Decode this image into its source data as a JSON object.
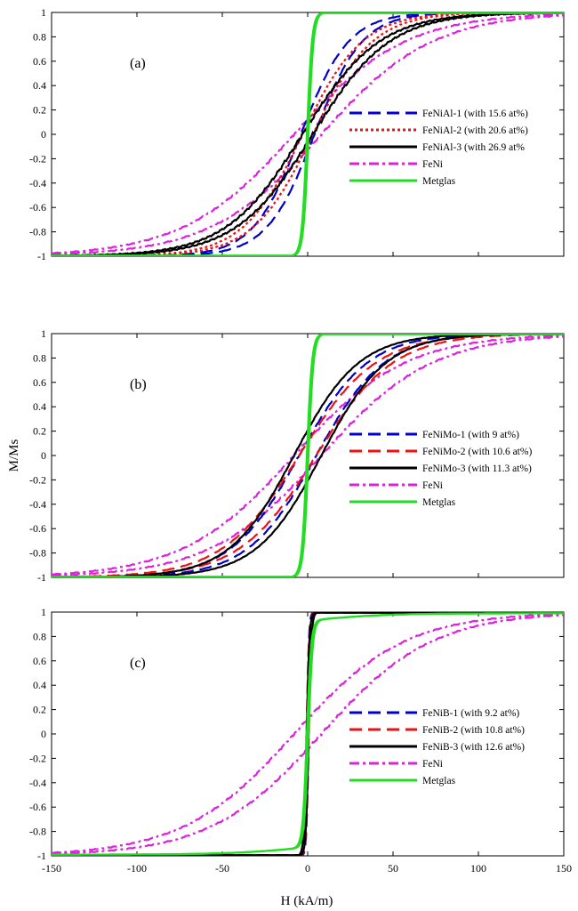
{
  "figure": {
    "xlabel": "H (kA/m)",
    "ylabel": "M/Ms"
  },
  "chart_data": [
    {
      "type": "line",
      "panel_label": "(a)",
      "xlim": [
        -150,
        150
      ],
      "ylim": [
        -1,
        1
      ],
      "xticks": [
        -150,
        -100,
        -50,
        0,
        50,
        100,
        150
      ],
      "yticks": [
        -1,
        -0.8,
        -0.6,
        -0.4,
        -0.2,
        0,
        0.2,
        0.4,
        0.6,
        0.8,
        1
      ],
      "ytick_labels": [
        "-1",
        "-0.8",
        "-0.6",
        "-0.4",
        "-0.2",
        "0",
        "0.2",
        "0.4",
        "0.6",
        "0.8",
        "1"
      ],
      "show_x_tick_labels": false,
      "legend_position": "center-right",
      "series": [
        {
          "name": "FeNiAl-1 (with 15.6 at%)",
          "color": "#0000cc",
          "style": "dash",
          "shape": "tanh",
          "coercivity": 4,
          "scale": 28,
          "noise": 0.004
        },
        {
          "name": "FeNiAl-2 (with 20.6 at%)",
          "color": "#ee1111",
          "style": "dot",
          "shape": "tanh",
          "coercivity": 3,
          "scale": 35,
          "noise": 0.004
        },
        {
          "name": "FeNiAl-3 (with 26.9 at%",
          "color": "#000000",
          "style": "solid",
          "shape": "tanh",
          "coercivity": 3,
          "scale": 45,
          "noise": 0.012
        },
        {
          "name": "FeNi",
          "color": "#dd22dd",
          "style": "dashdot",
          "shape": "tanh",
          "coercivity": 8,
          "scale": 65,
          "noise": 0.008
        },
        {
          "name": "Metglas",
          "color": "#22dd22",
          "style": "solid",
          "shape": "tanh",
          "coercivity": 0.5,
          "scale": 3,
          "noise": 0
        }
      ]
    },
    {
      "type": "line",
      "panel_label": "(b)",
      "xlim": [
        -150,
        150
      ],
      "ylim": [
        -1,
        1
      ],
      "xticks": [
        -150,
        -100,
        -50,
        0,
        50,
        100,
        150
      ],
      "yticks": [
        -1,
        -0.8,
        -0.6,
        -0.4,
        -0.2,
        0,
        0.2,
        0.4,
        0.6,
        0.8,
        1
      ],
      "ytick_labels": [
        "-1",
        "-0.8",
        "-0.6",
        "-0.4",
        "-0.2",
        "0",
        "0.2",
        "0.4",
        "0.6",
        "0.8",
        "1"
      ],
      "show_x_tick_labels": false,
      "legend_position": "center-right",
      "series": [
        {
          "name": "FeNiMo-1 (with 9 at%)",
          "color": "#0000cc",
          "style": "dash",
          "shape": "tanh",
          "coercivity": 5,
          "scale": 40,
          "noise": 0.004
        },
        {
          "name": "FeNiMo-2 (with 10.6 at%)",
          "color": "#ee1111",
          "style": "dash",
          "shape": "tanh",
          "coercivity": 5,
          "scale": 45,
          "noise": 0.004
        },
        {
          "name": "FeNiMo-3 (with 11.3 at%)",
          "color": "#000000",
          "style": "solid",
          "shape": "tanh",
          "coercivity": 8,
          "scale": 38,
          "noise": 0.004
        },
        {
          "name": "FeNi",
          "color": "#dd22dd",
          "style": "dashdot",
          "shape": "tanh",
          "coercivity": 8,
          "scale": 65,
          "noise": 0.008
        },
        {
          "name": "Metglas",
          "color": "#22dd22",
          "style": "solid",
          "shape": "tanh",
          "coercivity": 0.5,
          "scale": 3,
          "noise": 0
        }
      ]
    },
    {
      "type": "line",
      "panel_label": "(c)",
      "xlim": [
        -150,
        150
      ],
      "ylim": [
        -1,
        1
      ],
      "xticks": [
        -150,
        -100,
        -50,
        0,
        50,
        100,
        150
      ],
      "xtick_labels": [
        "-150",
        "-100",
        "-50",
        "0",
        "50",
        "100",
        "150"
      ],
      "yticks": [
        -1,
        -0.8,
        -0.6,
        -0.4,
        -0.2,
        0,
        0.2,
        0.4,
        0.6,
        0.8,
        1
      ],
      "ytick_labels": [
        "-1",
        "-0.8",
        "-0.6",
        "-0.4",
        "-0.2",
        "0",
        "0.2",
        "0.4",
        "0.6",
        "0.8",
        "1"
      ],
      "show_x_tick_labels": true,
      "legend_position": "center-right",
      "series": [
        {
          "name": "FeNiB-1 (with 9.2 at%)",
          "color": "#0000cc",
          "style": "dash",
          "shape": "tanh",
          "coercivity": 0.5,
          "scale": 1.2,
          "noise": 0
        },
        {
          "name": "FeNiB-2 (with 10.8 at%)",
          "color": "#ee1111",
          "style": "dash",
          "shape": "tanh",
          "coercivity": 0.7,
          "scale": 1.5,
          "noise": 0
        },
        {
          "name": "FeNiB-3 (with 12.6 at%)",
          "color": "#000000",
          "style": "solid",
          "shape": "tanh",
          "coercivity": 0.6,
          "scale": 1.6,
          "noise": 0
        },
        {
          "name": "FeNi",
          "color": "#dd22dd",
          "style": "dashdot",
          "shape": "tanh",
          "coercivity": 8,
          "scale": 65,
          "noise": 0.008
        },
        {
          "name": "Metglas",
          "color": "#22dd22",
          "style": "solid",
          "shape": "metglas",
          "coercivity": 0.5,
          "scale": 2.5,
          "tail_scale": 45,
          "noise": 0
        }
      ]
    }
  ]
}
